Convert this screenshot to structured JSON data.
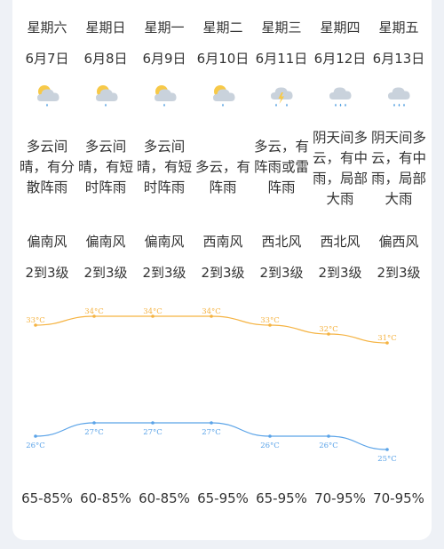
{
  "days": [
    {
      "weekday": "星期六",
      "date": "6月7日",
      "icon": "partly-cloudy-rain-icon",
      "desc": "多云间晴，有分散阵雨",
      "wind": "偏南风",
      "level": "2到3级",
      "high": 33,
      "low": 26,
      "humidity": "65-85%"
    },
    {
      "weekday": "星期日",
      "date": "6月8日",
      "icon": "partly-cloudy-rain-icon",
      "desc": "多云间晴，有短时阵雨",
      "wind": "偏南风",
      "level": "2到3级",
      "high": 34,
      "low": 27,
      "humidity": "60-85%"
    },
    {
      "weekday": "星期一",
      "date": "6月9日",
      "icon": "partly-cloudy-rain-icon",
      "desc": "多云间晴，有短时阵雨",
      "wind": "偏南风",
      "level": "2到3级",
      "high": 34,
      "low": 27,
      "humidity": "60-85%"
    },
    {
      "weekday": "星期二",
      "date": "6月10日",
      "icon": "partly-cloudy-rain-icon",
      "desc": "多云，有阵雨",
      "wind": "西南风",
      "level": "2到3级",
      "high": 34,
      "low": 27,
      "humidity": "65-95%"
    },
    {
      "weekday": "星期三",
      "date": "6月11日",
      "icon": "thunderstorm-icon",
      "desc": "多云，有阵雨或雷阵雨",
      "wind": "西北风",
      "level": "2到3级",
      "high": 33,
      "low": 26,
      "humidity": "65-95%"
    },
    {
      "weekday": "星期四",
      "date": "6月12日",
      "icon": "cloud-rain-icon",
      "desc": "阴天间多云，有中雨，局部大雨",
      "wind": "西北风",
      "level": "2到3级",
      "high": 32,
      "low": 26,
      "humidity": "70-95%"
    },
    {
      "weekday": "星期五",
      "date": "6月13日",
      "icon": "cloud-rain-icon",
      "desc": "阴天间多云，有中雨，局部大雨",
      "wind": "偏西风",
      "level": "2到3级",
      "high": 31,
      "low": 25,
      "humidity": "70-95%"
    }
  ],
  "temp_unit": "°C",
  "colors": {
    "high": "#f5b342",
    "low": "#5aa3e8",
    "sun": "#f7c948",
    "cloud": "#c9d2dc",
    "rain": "#4a9be0"
  },
  "chart_data": {
    "type": "line",
    "categories": [
      "6月7日",
      "6月8日",
      "6月9日",
      "6月10日",
      "6月11日",
      "6月12日",
      "6月13日"
    ],
    "series": [
      {
        "values": [
          33,
          34,
          34,
          34,
          33,
          32,
          31
        ]
      },
      {
        "values": [
          26,
          27,
          27,
          27,
          26,
          26,
          25
        ]
      }
    ]
  }
}
